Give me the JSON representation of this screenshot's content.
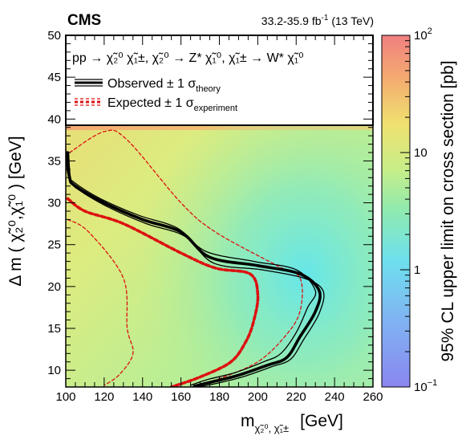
{
  "header": {
    "experiment": "CMS",
    "luminosity": "33.2-35.9 fb",
    "lumi_sup": "-1",
    "energy": "(13 TeV)"
  },
  "chart_data": {
    "type": "heatmap",
    "title": "",
    "xlabel": "m",
    "xlabel_sub": "χ̃₂⁰, χ̃₁±",
    "xlabel_unit": "[GeV]",
    "ylabel": "Δ m ( χ̃₂⁰,χ̃₁⁰ ) [GeV]",
    "zlabel": "95% CL upper limit on cross section [pb]",
    "xlim": [
      100,
      260
    ],
    "ylim": [
      8,
      50
    ],
    "zlim": [
      0.1,
      100
    ],
    "zscale": "log",
    "x_ticks": [
      100,
      120,
      140,
      160,
      180,
      200,
      220,
      240,
      260
    ],
    "y_ticks": [
      10,
      15,
      20,
      25,
      30,
      35,
      40,
      45,
      50
    ],
    "z_ticks": [
      {
        "value": 0.1,
        "base": "10",
        "exp": "−1"
      },
      {
        "value": 1,
        "label": "1"
      },
      {
        "value": 10,
        "label": "10"
      },
      {
        "value": 100,
        "base": "10",
        "exp": "2"
      }
    ],
    "colors": {
      "low": "#8888ee",
      "mid_low": "#66ccee",
      "mid": "#bbee99",
      "mid_high": "#eedd77",
      "high": "#ee8877",
      "observed": "#000000",
      "expected": "#dd1111"
    },
    "legend": {
      "placement": "top",
      "process_lhs": "pp",
      "process_text": "→ χ̃₂⁰ χ̃₁±, χ̃₂⁰ → Z* χ̃₁⁰, χ̃₁± → W* χ̃₁⁰",
      "observed_label": "Observed ± 1 σ",
      "observed_sub": "theory",
      "expected_label": "Expected ± 1 σ",
      "expected_sub": "experiment"
    },
    "observed": [
      [
        101,
        36
      ],
      [
        102,
        33
      ],
      [
        105,
        32
      ],
      [
        120,
        30
      ],
      [
        140,
        28
      ],
      [
        160,
        26.5
      ],
      [
        175,
        23.5
      ],
      [
        200,
        22.5
      ],
      [
        222,
        21.5
      ],
      [
        232,
        19.5
      ],
      [
        230,
        17
      ],
      [
        222,
        14
      ],
      [
        215,
        11.5
      ],
      [
        205,
        10.6
      ],
      [
        190,
        9.4
      ],
      [
        176,
        8.6
      ],
      [
        167,
        8.1
      ]
    ],
    "observed_up": [
      [
        101,
        35
      ],
      [
        103,
        32.5
      ],
      [
        107,
        31.5
      ],
      [
        122,
        29.5
      ],
      [
        142,
        27.5
      ],
      [
        162,
        26
      ],
      [
        177,
        22.8
      ],
      [
        202,
        22
      ],
      [
        224,
        21
      ],
      [
        234,
        19.5
      ],
      [
        232,
        16.8
      ],
      [
        224,
        13.7
      ],
      [
        217,
        11.3
      ],
      [
        207,
        10.4
      ],
      [
        192,
        9.2
      ],
      [
        178,
        8.4
      ],
      [
        169,
        8
      ]
    ],
    "observed_down": [
      [
        100,
        36.5
      ],
      [
        101,
        33.5
      ],
      [
        104,
        32.5
      ],
      [
        118,
        30.5
      ],
      [
        138,
        28.5
      ],
      [
        158,
        27
      ],
      [
        173,
        24.2
      ],
      [
        198,
        23
      ],
      [
        220,
        22
      ],
      [
        230,
        19.5
      ],
      [
        226,
        17.5
      ],
      [
        220,
        14.5
      ],
      [
        212,
        12
      ],
      [
        203,
        11
      ],
      [
        188,
        9.7
      ],
      [
        174,
        8.9
      ],
      [
        165,
        8.2
      ]
    ],
    "expected": [
      [
        101,
        30.5
      ],
      [
        110,
        29
      ],
      [
        130,
        27.5
      ],
      [
        160,
        24
      ],
      [
        178,
        22.2
      ],
      [
        196,
        21.5
      ],
      [
        200,
        19
      ],
      [
        198,
        16
      ],
      [
        194,
        13.5
      ],
      [
        186,
        11
      ],
      [
        170,
        9.2
      ],
      [
        155,
        8
      ]
    ],
    "expected_up": [
      [
        102,
        36
      ],
      [
        120,
        38.5
      ],
      [
        132,
        37.5
      ],
      [
        160,
        30
      ],
      [
        178,
        26.5
      ],
      [
        210,
        22.5
      ],
      [
        222,
        21
      ],
      [
        222,
        17
      ],
      [
        214,
        14
      ],
      [
        200,
        11
      ],
      [
        180,
        9
      ],
      [
        166,
        8
      ]
    ],
    "expected_down": [
      [
        101,
        28
      ],
      [
        112,
        26.5
      ],
      [
        130,
        21
      ],
      [
        132,
        15
      ],
      [
        135,
        12
      ],
      [
        128,
        9.5
      ],
      [
        120,
        8.2
      ]
    ]
  }
}
